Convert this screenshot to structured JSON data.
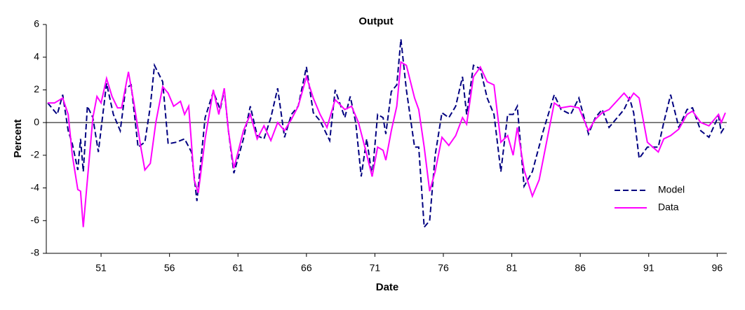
{
  "chart_data": {
    "type": "line",
    "title": "Output",
    "xlabel": "Date",
    "ylabel": "Percent",
    "xlim": [
      47,
      96.7
    ],
    "xticks": [
      51,
      56,
      61,
      66,
      71,
      76,
      81,
      86,
      91,
      96
    ],
    "ylim": [
      -8,
      6
    ],
    "yticks": [
      -8,
      -6,
      -4,
      -2,
      0,
      2,
      4,
      6
    ],
    "grid": false,
    "legend": "right",
    "series": [
      {
        "name": "Model",
        "color": "#000080",
        "dashed": true,
        "x": [
          47.1,
          47.8,
          48.2,
          48.6,
          48.9,
          49.3,
          49.5,
          49.7,
          50.0,
          50.4,
          50.8,
          51.4,
          51.9,
          52.4,
          52.8,
          53.2,
          53.7,
          54.2,
          54.6,
          54.9,
          55.5,
          55.9,
          56.5,
          57.1,
          57.6,
          58.0,
          58.6,
          59.2,
          59.7,
          60.0,
          60.3,
          60.7,
          61.4,
          61.9,
          62.4,
          62.9,
          63.4,
          63.9,
          64.4,
          64.9,
          65.4,
          66.0,
          66.5,
          67.0,
          67.7,
          68.1,
          68.8,
          69.2,
          69.6,
          70.0,
          70.4,
          70.8,
          71.2,
          71.6,
          71.8,
          72.2,
          72.6,
          72.9,
          73.3,
          73.9,
          74.2,
          74.6,
          75.0,
          75.4,
          75.9,
          76.4,
          76.9,
          77.4,
          77.7,
          78.2,
          78.7,
          79.2,
          79.7,
          80.2,
          80.7,
          81.1,
          81.4,
          81.9,
          82.5,
          83.3,
          84.1,
          84.6,
          85.3,
          85.9,
          86.6,
          87.1,
          87.6,
          88.1,
          89.2,
          89.6,
          89.9,
          90.3,
          90.9,
          91.7,
          92.1,
          92.6,
          93.2,
          93.8,
          94.2,
          94.8,
          95.4,
          96.1,
          96.3,
          96.6
        ],
        "values": [
          1.2,
          0.5,
          1.7,
          -0.5,
          -1.3,
          -2.9,
          -1.0,
          -3.0,
          1.0,
          0.3,
          -1.8,
          2.4,
          0.5,
          -0.5,
          2.1,
          2.3,
          -1.5,
          -1.2,
          1.0,
          3.5,
          2.5,
          -1.3,
          -1.2,
          -1.0,
          -1.8,
          -4.8,
          0.3,
          1.9,
          0.8,
          2.0,
          -0.5,
          -3.1,
          -1.0,
          1.0,
          -0.8,
          -1.0,
          0.3,
          2.1,
          -0.9,
          0.5,
          1.0,
          3.4,
          0.6,
          0.1,
          -1.1,
          2.0,
          0.3,
          1.6,
          0.0,
          -3.3,
          -1.0,
          -3.3,
          0.5,
          0.3,
          -0.7,
          1.9,
          2.3,
          5.1,
          2.0,
          -1.5,
          -1.5,
          -6.4,
          -6.0,
          -2.0,
          0.6,
          0.3,
          1.0,
          2.8,
          0.5,
          3.5,
          3.3,
          1.5,
          0.5,
          -3.0,
          0.5,
          0.5,
          1.0,
          -3.9,
          -3.0,
          -0.5,
          1.7,
          0.8,
          0.5,
          1.5,
          -0.7,
          0.3,
          0.8,
          -0.3,
          0.8,
          1.5,
          0.6,
          -2.2,
          -1.5,
          -1.5,
          0.0,
          1.7,
          -0.3,
          0.8,
          0.9,
          -0.5,
          -0.9,
          0.4,
          -0.6,
          -0.2
        ]
      },
      {
        "name": "Data",
        "color": "#ff00ff",
        "dashed": false,
        "x": [
          47.1,
          47.6,
          47.8,
          48.2,
          48.6,
          48.9,
          49.3,
          49.5,
          49.7,
          50.0,
          50.4,
          50.7,
          51.0,
          51.4,
          51.8,
          52.2,
          52.5,
          53.0,
          53.4,
          53.9,
          54.2,
          54.6,
          55.0,
          55.5,
          55.9,
          56.3,
          56.8,
          57.1,
          57.4,
          57.8,
          58.1,
          58.6,
          59.2,
          59.6,
          60.0,
          60.3,
          60.7,
          61.4,
          61.9,
          62.4,
          62.9,
          63.4,
          63.9,
          64.4,
          64.9,
          65.4,
          66.0,
          66.5,
          67.0,
          67.5,
          68.1,
          68.8,
          69.3,
          69.8,
          70.3,
          70.8,
          71.2,
          71.6,
          71.8,
          72.2,
          72.6,
          72.9,
          73.3,
          73.9,
          74.2,
          74.6,
          75.0,
          75.4,
          75.9,
          76.4,
          76.9,
          77.4,
          77.7,
          78.2,
          78.7,
          79.2,
          79.7,
          80.2,
          80.7,
          81.1,
          81.4,
          81.9,
          82.5,
          83.0,
          84.1,
          84.6,
          85.3,
          85.9,
          86.6,
          87.1,
          87.6,
          88.1,
          89.2,
          89.6,
          89.9,
          90.3,
          90.9,
          91.7,
          92.1,
          92.6,
          93.2,
          93.8,
          94.2,
          94.8,
          95.4,
          96.1,
          96.3,
          96.6
        ],
        "values": [
          1.2,
          1.2,
          1.3,
          1.5,
          0.5,
          -2.0,
          -4.1,
          -4.2,
          -6.4,
          -3.5,
          0.3,
          1.6,
          1.2,
          2.7,
          1.6,
          0.9,
          0.9,
          3.1,
          1.2,
          -1.5,
          -2.9,
          -2.5,
          0.0,
          2.2,
          1.8,
          1.0,
          1.3,
          0.5,
          1.0,
          -3.5,
          -4.3,
          -1.0,
          2.0,
          0.5,
          2.1,
          -0.5,
          -2.8,
          -0.5,
          0.5,
          -1.0,
          -0.2,
          -1.1,
          0.0,
          -0.5,
          0.2,
          1.0,
          2.8,
          1.5,
          0.5,
          -0.3,
          1.4,
          0.8,
          1.0,
          0.0,
          -1.6,
          -3.3,
          -1.5,
          -1.7,
          -2.3,
          -0.5,
          1.0,
          3.7,
          3.5,
          1.5,
          0.8,
          -1.5,
          -4.2,
          -3.0,
          -0.9,
          -1.4,
          -0.8,
          0.3,
          -0.1,
          2.8,
          3.4,
          2.5,
          2.3,
          -1.2,
          -0.8,
          -2.0,
          -0.3,
          -2.9,
          -4.5,
          -3.5,
          1.2,
          0.9,
          1.0,
          0.9,
          -0.5,
          0.2,
          0.6,
          0.8,
          1.8,
          1.4,
          1.8,
          1.5,
          -1.2,
          -1.8,
          -1.0,
          -0.8,
          -0.4,
          0.5,
          0.7,
          0.0,
          -0.2,
          0.5,
          0.0,
          0.6
        ]
      }
    ]
  }
}
